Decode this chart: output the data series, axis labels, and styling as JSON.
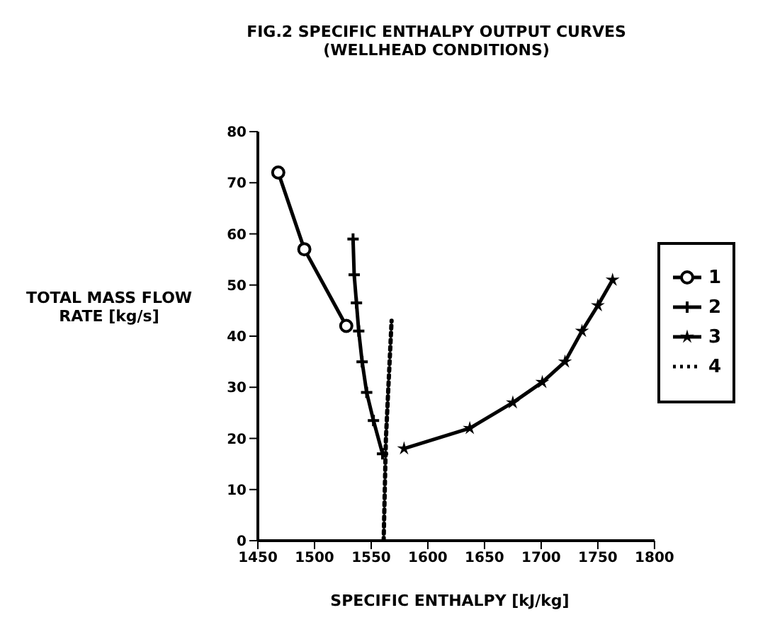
{
  "chart_data": {
    "type": "line",
    "title": "FIG.2 SPECIFIC ENTHALPY OUTPUT CURVES (WELLHEAD CONDITIONS)",
    "xlabel": "SPECIFIC ENTHALPY [kJ/kg]",
    "ylabel": "TOTAL MASS FLOW RATE [kg/s]",
    "xlim": [
      1450,
      1800
    ],
    "xticks": [
      1450,
      1500,
      1550,
      1600,
      1650,
      1700,
      1750,
      1800
    ],
    "ylim": [
      0,
      80
    ],
    "yticks": [
      0,
      10,
      20,
      30,
      40,
      50,
      60,
      70,
      80
    ],
    "grid": false,
    "legend": "right",
    "series": [
      {
        "name": "1",
        "color": "#000000",
        "marker": "circle",
        "line_style": "solid",
        "x": [
          1468,
          1491,
          1528
        ],
        "values": [
          72,
          57,
          42
        ]
      },
      {
        "name": "2",
        "color": "#000000",
        "marker": "cross",
        "line_style": "solid",
        "x": [
          1534,
          1535,
          1537,
          1539,
          1542,
          1546,
          1552,
          1560
        ],
        "values": [
          59,
          52,
          46.5,
          41,
          35,
          29,
          23.5,
          17
        ]
      },
      {
        "name": "3",
        "color": "#000000",
        "marker": "star",
        "line_style": "solid",
        "x": [
          1579,
          1637,
          1675,
          1701,
          1721,
          1736,
          1750,
          1763
        ],
        "values": [
          18,
          22,
          27,
          31,
          35,
          41,
          46,
          51
        ]
      },
      {
        "name": "4",
        "color": "#000000",
        "marker": "none",
        "line_style": "dotted",
        "x": [
          1561,
          1563,
          1568
        ],
        "values": [
          0,
          20,
          43
        ]
      }
    ]
  }
}
